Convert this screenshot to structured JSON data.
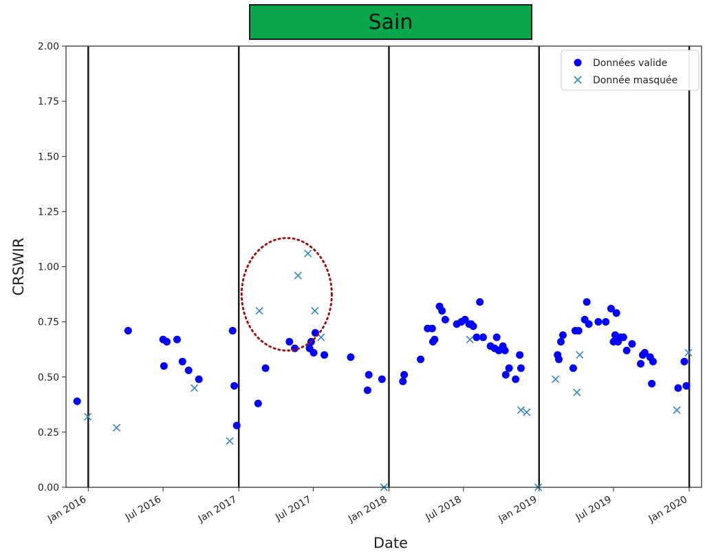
{
  "banner": {
    "label": "Sain",
    "color": "#0aa84a"
  },
  "chart_data": {
    "type": "scatter",
    "title": "",
    "xlabel": "Date",
    "ylabel": "CRSWIR",
    "x_type": "date",
    "xlim": [
      "2015-11-08",
      "2020-01-31"
    ],
    "ylim": [
      0,
      2.0
    ],
    "grid": false,
    "legend_position": "top-right",
    "x_ticks": [
      "2016-01-01",
      "2016-07-01",
      "2017-01-01",
      "2017-07-01",
      "2018-01-01",
      "2018-07-01",
      "2019-01-01",
      "2019-07-01",
      "2020-01-01"
    ],
    "x_tick_labels": [
      "Jan 2016",
      "Jul 2016",
      "Jan 2017",
      "Jul 2017",
      "Jan 2018",
      "Jul 2018",
      "Jan 2019",
      "Jul 2019",
      "Jan 2020"
    ],
    "y_ticks": [
      0.0,
      0.25,
      0.5,
      0.75,
      1.0,
      1.25,
      1.5,
      1.75,
      2.0
    ],
    "y_tick_labels": [
      "0.00",
      "0.25",
      "0.50",
      "0.75",
      "1.00",
      "1.25",
      "1.50",
      "1.75",
      "2.00"
    ],
    "vertical_lines": [
      "2016-01-01",
      "2017-01-01",
      "2018-01-01",
      "2019-01-01",
      "2020-01-01"
    ],
    "series": [
      {
        "name": "Données valide",
        "marker": "circle",
        "color": "#0000ff",
        "points": [
          [
            "2015-12-05",
            0.39
          ],
          [
            "2016-04-07",
            0.71
          ],
          [
            "2016-07-01",
            0.67
          ],
          [
            "2016-07-03",
            0.55
          ],
          [
            "2016-07-10",
            0.66
          ],
          [
            "2016-08-04",
            0.67
          ],
          [
            "2016-08-17",
            0.57
          ],
          [
            "2016-09-01",
            0.53
          ],
          [
            "2016-09-26",
            0.49
          ],
          [
            "2016-12-17",
            0.71
          ],
          [
            "2016-12-21",
            0.46
          ],
          [
            "2016-12-27",
            0.28
          ],
          [
            "2017-02-17",
            0.38
          ],
          [
            "2017-03-07",
            0.54
          ],
          [
            "2017-05-04",
            0.66
          ],
          [
            "2017-05-17",
            0.63
          ],
          [
            "2017-06-22",
            0.63
          ],
          [
            "2017-06-26",
            0.66
          ],
          [
            "2017-07-06",
            0.7
          ],
          [
            "2017-07-02",
            0.61
          ],
          [
            "2017-07-28",
            0.6
          ],
          [
            "2017-09-30",
            0.59
          ],
          [
            "2017-11-10",
            0.44
          ],
          [
            "2017-11-13",
            0.51
          ],
          [
            "2017-12-15",
            0.49
          ],
          [
            "2018-02-04",
            0.48
          ],
          [
            "2018-02-07",
            0.51
          ],
          [
            "2018-03-19",
            0.58
          ],
          [
            "2018-04-05",
            0.72
          ],
          [
            "2018-04-16",
            0.72
          ],
          [
            "2018-04-18",
            0.66
          ],
          [
            "2018-04-22",
            0.67
          ],
          [
            "2018-05-04",
            0.82
          ],
          [
            "2018-05-10",
            0.8
          ],
          [
            "2018-05-18",
            0.76
          ],
          [
            "2018-06-15",
            0.74
          ],
          [
            "2018-06-26",
            0.75
          ],
          [
            "2018-07-05",
            0.76
          ],
          [
            "2018-07-15",
            0.74
          ],
          [
            "2018-07-20",
            0.74
          ],
          [
            "2018-07-25",
            0.73
          ],
          [
            "2018-08-02",
            0.68
          ],
          [
            "2018-08-10",
            0.84
          ],
          [
            "2018-08-18",
            0.68
          ],
          [
            "2018-09-05",
            0.64
          ],
          [
            "2018-09-15",
            0.63
          ],
          [
            "2018-09-20",
            0.68
          ],
          [
            "2018-09-25",
            0.62
          ],
          [
            "2018-10-05",
            0.64
          ],
          [
            "2018-10-10",
            0.62
          ],
          [
            "2018-10-12",
            0.51
          ],
          [
            "2018-10-20",
            0.54
          ],
          [
            "2018-11-05",
            0.49
          ],
          [
            "2018-11-15",
            0.6
          ],
          [
            "2018-11-18",
            0.54
          ],
          [
            "2019-02-15",
            0.6
          ],
          [
            "2019-02-18",
            0.58
          ],
          [
            "2019-02-23",
            0.66
          ],
          [
            "2019-02-28",
            0.69
          ],
          [
            "2019-03-25",
            0.54
          ],
          [
            "2019-03-30",
            0.71
          ],
          [
            "2019-04-07",
            0.71
          ],
          [
            "2019-04-22",
            0.76
          ],
          [
            "2019-04-27",
            0.84
          ],
          [
            "2019-05-02",
            0.74
          ],
          [
            "2019-05-25",
            0.75
          ],
          [
            "2019-06-12",
            0.75
          ],
          [
            "2019-06-25",
            0.81
          ],
          [
            "2019-07-01",
            0.66
          ],
          [
            "2019-07-05",
            0.69
          ],
          [
            "2019-07-08",
            0.79
          ],
          [
            "2019-07-12",
            0.66
          ],
          [
            "2019-07-18",
            0.68
          ],
          [
            "2019-07-25",
            0.68
          ],
          [
            "2019-08-02",
            0.62
          ],
          [
            "2019-08-15",
            0.65
          ],
          [
            "2019-09-05",
            0.56
          ],
          [
            "2019-09-10",
            0.6
          ],
          [
            "2019-09-15",
            0.61
          ],
          [
            "2019-09-28",
            0.59
          ],
          [
            "2019-10-02",
            0.47
          ],
          [
            "2019-10-05",
            0.57
          ],
          [
            "2019-12-05",
            0.45
          ],
          [
            "2019-12-20",
            0.57
          ],
          [
            "2019-12-25",
            0.46
          ]
        ]
      },
      {
        "name": "Donnée masquée",
        "marker": "x",
        "color": "#2e86c1",
        "points": [
          [
            "2015-12-31",
            0.32
          ],
          [
            "2016-03-10",
            0.27
          ],
          [
            "2016-09-15",
            0.45
          ],
          [
            "2016-12-10",
            0.21
          ],
          [
            "2017-02-20",
            0.8
          ],
          [
            "2017-05-25",
            0.96
          ],
          [
            "2017-06-18",
            1.06
          ],
          [
            "2017-07-05",
            0.8
          ],
          [
            "2017-07-20",
            0.68
          ],
          [
            "2017-12-20",
            0.0
          ],
          [
            "2018-07-17",
            0.67
          ],
          [
            "2018-11-18",
            0.35
          ],
          [
            "2018-12-02",
            0.34
          ],
          [
            "2018-12-30",
            0.0
          ],
          [
            "2019-02-10",
            0.49
          ],
          [
            "2019-04-03",
            0.43
          ],
          [
            "2019-04-10",
            0.6
          ],
          [
            "2019-12-02",
            0.35
          ],
          [
            "2019-12-30",
            0.61
          ]
        ]
      }
    ],
    "annotations": [
      {
        "type": "ellipse",
        "style": "dotted",
        "color": "#a01010",
        "x_range": [
          "2017-01-08",
          "2017-08-15"
        ],
        "y_range": [
          0.62,
          1.13
        ]
      }
    ]
  }
}
